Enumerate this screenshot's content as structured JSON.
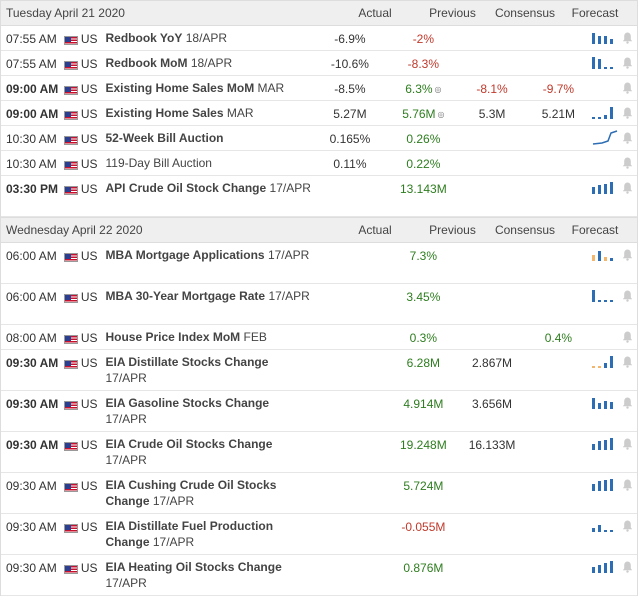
{
  "headers": {
    "actual": "Actual",
    "previous": "Previous",
    "consensus": "Consensus",
    "forecast": "Forecast"
  },
  "days": [
    {
      "date": "Tuesday April 21 2020",
      "events": [
        {
          "time": "07:55 AM",
          "time_bold": false,
          "country": "US",
          "name": "Redbook YoY",
          "period": "18/APR",
          "actual": "-6.9%",
          "previous": "-2%",
          "previous_color": "red",
          "consensus": "",
          "forecast": "",
          "forecast_color": "",
          "prev_revised": false,
          "chart": "bars",
          "bars": [
            {
              "h": 0.9,
              "c": "b"
            },
            {
              "h": 0.7,
              "c": "b"
            },
            {
              "h": 0.7,
              "c": "b"
            },
            {
              "h": 0.45,
              "c": "b"
            }
          ],
          "tall": false
        },
        {
          "time": "07:55 AM",
          "time_bold": false,
          "country": "US",
          "name": "Redbook MoM",
          "period": "18/APR",
          "actual": "-10.6%",
          "previous": "-8.3%",
          "previous_color": "red",
          "consensus": "",
          "forecast": "",
          "forecast_color": "",
          "prev_revised": false,
          "chart": "bars",
          "bars": [
            {
              "h": 1.0,
              "c": "b"
            },
            {
              "h": 0.8,
              "c": "b"
            },
            {
              "h": 0.2,
              "c": "b"
            },
            {
              "h": 0.15,
              "c": "b"
            }
          ],
          "tall": false
        },
        {
          "time": "09:00 AM",
          "time_bold": true,
          "country": "US",
          "name": "Existing Home Sales MoM",
          "period": "MAR",
          "actual": "-8.5%",
          "previous": "6.3%",
          "previous_color": "green",
          "consensus": "-8.1%",
          "forecast": "-9.7%",
          "forecast_color": "red",
          "prev_revised": true,
          "chart": "none",
          "bars": [],
          "tall": false
        },
        {
          "time": "09:00 AM",
          "time_bold": true,
          "country": "US",
          "name": "Existing Home Sales",
          "period": "MAR",
          "actual": "5.27M",
          "previous": "5.76M",
          "previous_color": "green",
          "consensus": "5.3M",
          "forecast": "5.21M",
          "forecast_color": "",
          "prev_revised": true,
          "chart": "bars",
          "bars": [
            {
              "h": 0.1,
              "c": "b"
            },
            {
              "h": 0.1,
              "c": "b"
            },
            {
              "h": 0.35,
              "c": "b"
            },
            {
              "h": 1.0,
              "c": "b"
            }
          ],
          "tall": false
        },
        {
          "time": "10:30 AM",
          "time_bold": false,
          "country": "US",
          "name": "52-Week Bill Auction",
          "period": "",
          "actual": "0.165%",
          "previous": "0.26%",
          "previous_color": "green",
          "consensus": "",
          "forecast": "",
          "forecast_color": "",
          "prev_revised": false,
          "chart": "line",
          "bars": [],
          "tall": false
        },
        {
          "time": "10:30 AM",
          "time_bold": false,
          "country": "US",
          "name": "119-Day Bill Auction",
          "period": "",
          "actual": "0.11%",
          "previous": "0.22%",
          "previous_color": "green",
          "consensus": "",
          "forecast": "",
          "forecast_color": "",
          "prev_revised": false,
          "chart": "none",
          "bars": [],
          "tall": false,
          "name_normal": true
        },
        {
          "time": "03:30 PM",
          "time_bold": true,
          "country": "US",
          "name": "API Crude Oil Stock Change",
          "period": "17/APR",
          "actual": "",
          "previous": "13.143M",
          "previous_color": "green",
          "consensus": "",
          "forecast": "",
          "forecast_color": "",
          "prev_revised": false,
          "chart": "bars",
          "bars": [
            {
              "h": 0.6,
              "c": "b"
            },
            {
              "h": 0.75,
              "c": "b"
            },
            {
              "h": 0.85,
              "c": "b"
            },
            {
              "h": 1.0,
              "c": "b"
            }
          ],
          "tall": true
        }
      ]
    },
    {
      "date": "Wednesday April 22 2020",
      "events": [
        {
          "time": "06:00 AM",
          "time_bold": false,
          "country": "US",
          "name": "MBA Mortgage Applications",
          "period": "17/APR",
          "actual": "",
          "previous": "7.3%",
          "previous_color": "green",
          "consensus": "",
          "forecast": "",
          "forecast_color": "",
          "prev_revised": false,
          "chart": "bars",
          "bars": [
            {
              "h": 0.5,
              "c": "o"
            },
            {
              "h": 0.8,
              "c": "b"
            },
            {
              "h": 0.3,
              "c": "o"
            },
            {
              "h": 0.25,
              "c": "b"
            }
          ],
          "tall": true
        },
        {
          "time": "06:00 AM",
          "time_bold": false,
          "country": "US",
          "name": "MBA 30-Year Mortgage Rate",
          "period": "17/APR",
          "actual": "",
          "previous": "3.45%",
          "previous_color": "green",
          "consensus": "",
          "forecast": "",
          "forecast_color": "",
          "prev_revised": false,
          "chart": "bars",
          "bars": [
            {
              "h": 1.0,
              "c": "b"
            },
            {
              "h": 0.2,
              "c": "b"
            },
            {
              "h": 0.15,
              "c": "b"
            },
            {
              "h": 0.12,
              "c": "b"
            }
          ],
          "tall": true
        },
        {
          "time": "08:00 AM",
          "time_bold": false,
          "country": "US",
          "name": "House Price Index MoM",
          "period": "FEB",
          "actual": "",
          "previous": "0.3%",
          "previous_color": "green",
          "consensus": "",
          "forecast": "0.4%",
          "forecast_color": "green",
          "prev_revised": false,
          "chart": "none",
          "bars": [],
          "tall": false
        },
        {
          "time": "09:30 AM",
          "time_bold": true,
          "country": "US",
          "name": "EIA Distillate Stocks Change",
          "period": "17/APR",
          "actual": "",
          "previous": "6.28M",
          "previous_color": "green",
          "consensus": "2.867M",
          "forecast": "",
          "forecast_color": "",
          "prev_revised": false,
          "chart": "bars",
          "bars": [
            {
              "h": 0.15,
              "c": "o"
            },
            {
              "h": 0.15,
              "c": "o"
            },
            {
              "h": 0.4,
              "c": "b"
            },
            {
              "h": 1.0,
              "c": "b"
            }
          ],
          "tall": true
        },
        {
          "time": "09:30 AM",
          "time_bold": true,
          "country": "US",
          "name": "EIA Gasoline Stocks Change",
          "period": "17/APR",
          "actual": "",
          "previous": "4.914M",
          "previous_color": "green",
          "consensus": "3.656M",
          "forecast": "",
          "forecast_color": "",
          "prev_revised": false,
          "chart": "bars",
          "bars": [
            {
              "h": 0.9,
              "c": "b"
            },
            {
              "h": 0.5,
              "c": "b"
            },
            {
              "h": 0.7,
              "c": "b"
            },
            {
              "h": 0.6,
              "c": "b"
            }
          ],
          "tall": true
        },
        {
          "time": "09:30 AM",
          "time_bold": true,
          "country": "US",
          "name": "EIA Crude Oil Stocks Change",
          "period": "17/APR",
          "actual": "",
          "previous": "19.248M",
          "previous_color": "green",
          "consensus": "16.133M",
          "forecast": "",
          "forecast_color": "",
          "prev_revised": false,
          "chart": "bars",
          "bars": [
            {
              "h": 0.5,
              "c": "b"
            },
            {
              "h": 0.75,
              "c": "b"
            },
            {
              "h": 0.85,
              "c": "b"
            },
            {
              "h": 1.0,
              "c": "b"
            }
          ],
          "tall": true
        },
        {
          "time": "09:30 AM",
          "time_bold": false,
          "country": "US",
          "name": "EIA Cushing Crude Oil Stocks",
          "period": "17/APR",
          "name_line2": "Change",
          "actual": "",
          "previous": "5.724M",
          "previous_color": "green",
          "consensus": "",
          "forecast": "",
          "forecast_color": "",
          "prev_revised": false,
          "chart": "bars",
          "bars": [
            {
              "h": 0.6,
              "c": "b"
            },
            {
              "h": 0.8,
              "c": "b"
            },
            {
              "h": 0.9,
              "c": "b"
            },
            {
              "h": 1.0,
              "c": "b"
            }
          ],
          "tall": true
        },
        {
          "time": "09:30 AM",
          "time_bold": false,
          "country": "US",
          "name": "EIA Distillate Fuel Production",
          "period": "17/APR",
          "name_line2": "Change",
          "actual": "",
          "previous": "-0.055M",
          "previous_color": "red",
          "consensus": "",
          "forecast": "",
          "forecast_color": "",
          "prev_revised": false,
          "chart": "bars",
          "bars": [
            {
              "h": 0.3,
              "c": "b"
            },
            {
              "h": 0.6,
              "c": "b"
            },
            {
              "h": 0.2,
              "c": "b"
            },
            {
              "h": 0.15,
              "c": "b"
            }
          ],
          "tall": true
        },
        {
          "time": "09:30 AM",
          "time_bold": false,
          "country": "US",
          "name": "EIA Heating Oil Stocks Change",
          "period": "17/APR",
          "actual": "",
          "previous": "0.876M",
          "previous_color": "green",
          "consensus": "",
          "forecast": "",
          "forecast_color": "",
          "prev_revised": false,
          "chart": "bars",
          "bars": [
            {
              "h": 0.5,
              "c": "b"
            },
            {
              "h": 0.7,
              "c": "b"
            },
            {
              "h": 0.8,
              "c": "b"
            },
            {
              "h": 1.0,
              "c": "b"
            }
          ],
          "tall": true
        }
      ]
    }
  ],
  "icons": {
    "bell": "bell-icon",
    "flag": "us-flag-icon",
    "revised": "revised-icon"
  }
}
